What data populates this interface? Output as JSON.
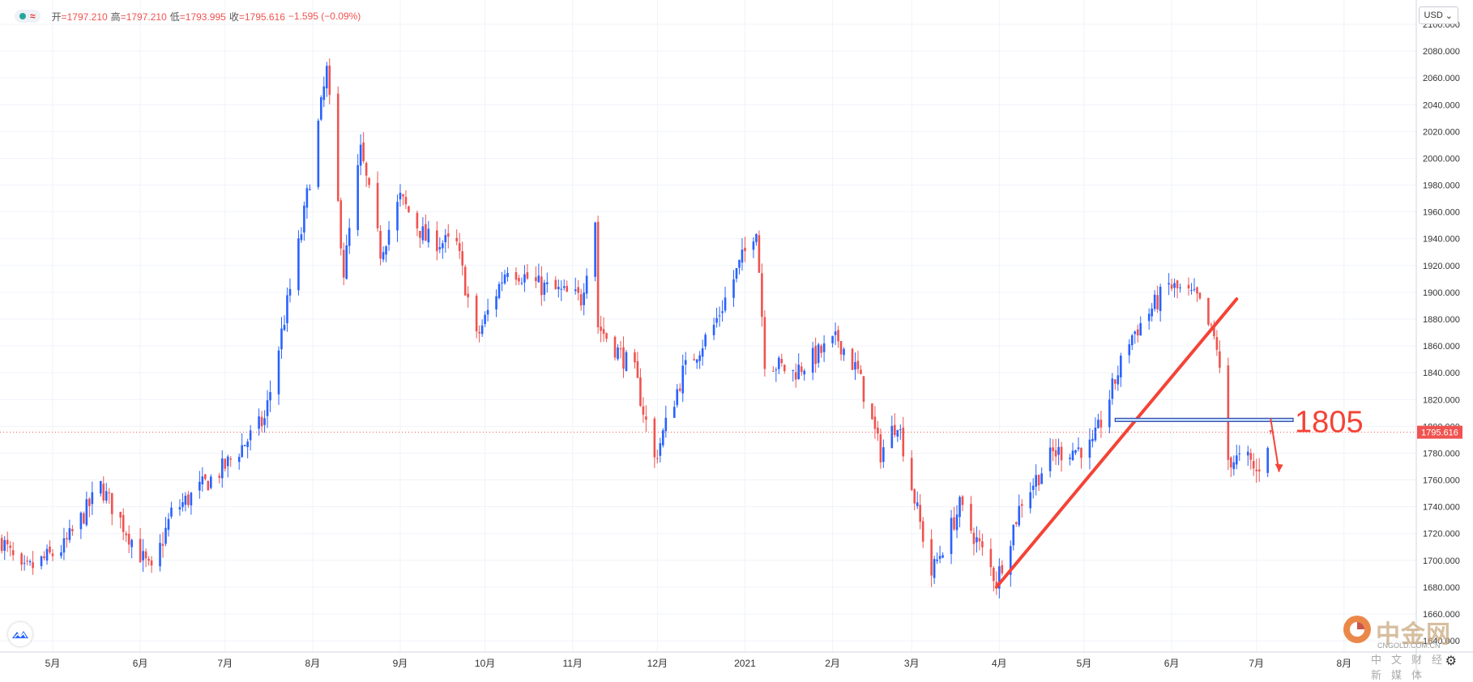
{
  "header": {
    "indicator_icon": "wave-icon",
    "open_label": "开",
    "open": "=1797.210",
    "high_label": "高",
    "high": "=1797.210",
    "low_label": "低",
    "low": "=1793.995",
    "close_label": "收",
    "close": "=1795.616",
    "change": "−1.595 (−0.09%)"
  },
  "currency": {
    "label": "USD"
  },
  "annotation": {
    "level_label": "1805"
  },
  "price_label": "1795.616",
  "watermark": {
    "name": "中金网",
    "site": "CNGOLD.COM.CN",
    "subtitle": "中文财经新媒体"
  },
  "colors": {
    "up": "#2962ff",
    "down": "#ef5350",
    "annotation": "#f44336",
    "grid": "#f0f3fa"
  },
  "chart_data": {
    "type": "candlestick",
    "title": "",
    "currency": "USD",
    "ylim": [
      1640,
      2110
    ],
    "y_ticks": [
      "1640.000",
      "1660.000",
      "1680.000",
      "1700.000",
      "1720.000",
      "1740.000",
      "1760.000",
      "1780.000",
      "1800.000",
      "1820.000",
      "1840.000",
      "1860.000",
      "1880.000",
      "1900.000",
      "1920.000",
      "1940.000",
      "1960.000",
      "1980.000",
      "2000.000",
      "2020.000",
      "2040.000",
      "2060.000",
      "2080.000",
      "2100.000"
    ],
    "x_ticks": [
      "5月",
      "6月",
      "7月",
      "8月",
      "9月",
      "10月",
      "11月",
      "12月",
      "2021",
      "2月",
      "3月",
      "4月",
      "5月",
      "6月",
      "7月",
      "8月"
    ],
    "last_price": 1795.616,
    "last_ohlc": {
      "open": 1797.21,
      "high": 1797.21,
      "low": 1793.995,
      "close": 1795.616,
      "change": -1.595,
      "change_pct": -0.09
    },
    "anchors": [
      {
        "date": "2020-04-13",
        "close": 1715
      },
      {
        "date": "2020-04-20",
        "close": 1690
      },
      {
        "date": "2020-05-05",
        "close": 1710
      },
      {
        "date": "2020-05-18",
        "close": 1755
      },
      {
        "date": "2020-06-05",
        "close": 1690
      },
      {
        "date": "2020-06-12",
        "close": 1735
      },
      {
        "date": "2020-07-01",
        "close": 1770
      },
      {
        "date": "2020-07-15",
        "close": 1805
      },
      {
        "date": "2020-07-28",
        "close": 1945
      },
      {
        "date": "2020-08-06",
        "close": 2065
      },
      {
        "date": "2020-08-12",
        "close": 1915
      },
      {
        "date": "2020-08-18",
        "close": 2005
      },
      {
        "date": "2020-08-25",
        "close": 1930
      },
      {
        "date": "2020-09-01",
        "close": 1970
      },
      {
        "date": "2020-09-10",
        "close": 1940
      },
      {
        "date": "2020-09-21",
        "close": 1935
      },
      {
        "date": "2020-09-28",
        "close": 1865
      },
      {
        "date": "2020-10-09",
        "close": 1920
      },
      {
        "date": "2020-10-20",
        "close": 1905
      },
      {
        "date": "2020-11-04",
        "close": 1895
      },
      {
        "date": "2020-11-09",
        "close": 1955
      },
      {
        "date": "2020-11-10",
        "close": 1875
      },
      {
        "date": "2020-11-23",
        "close": 1840
      },
      {
        "date": "2020-11-30",
        "close": 1775
      },
      {
        "date": "2020-12-10",
        "close": 1840
      },
      {
        "date": "2020-12-21",
        "close": 1875
      },
      {
        "date": "2021-01-05",
        "close": 1950
      },
      {
        "date": "2021-01-08",
        "close": 1850
      },
      {
        "date": "2021-01-18",
        "close": 1840
      },
      {
        "date": "2021-02-03",
        "close": 1865
      },
      {
        "date": "2021-02-10",
        "close": 1840
      },
      {
        "date": "2021-02-18",
        "close": 1780
      },
      {
        "date": "2021-02-24",
        "close": 1805
      },
      {
        "date": "2021-03-01",
        "close": 1755
      },
      {
        "date": "2021-03-08",
        "close": 1690
      },
      {
        "date": "2021-03-18",
        "close": 1740
      },
      {
        "date": "2021-03-31",
        "close": 1685
      },
      {
        "date": "2021-04-09",
        "close": 1745
      },
      {
        "date": "2021-04-20",
        "close": 1780
      },
      {
        "date": "2021-05-04",
        "close": 1785
      },
      {
        "date": "2021-05-17",
        "close": 1865
      },
      {
        "date": "2021-05-31",
        "close": 1905
      },
      {
        "date": "2021-06-10",
        "close": 1895
      },
      {
        "date": "2021-06-17",
        "close": 1860
      },
      {
        "date": "2021-06-21",
        "close": 1775
      },
      {
        "date": "2021-06-28",
        "close": 1775
      },
      {
        "date": "2021-07-01",
        "close": 1765
      },
      {
        "date": "2021-07-06",
        "close": 1795
      }
    ],
    "annotations": [
      {
        "type": "trendline",
        "from": {
          "date": "2021-03-31",
          "y": 1680
        },
        "to": {
          "date": "2021-06-24",
          "y": 1895
        }
      },
      {
        "type": "horizontal-zone",
        "from_date": "2021-05-12",
        "to_date": "2021-07-14",
        "y_bottom": 1804,
        "y_top": 1806,
        "label": "1805"
      },
      {
        "type": "arrow",
        "from": {
          "date": "2021-07-06",
          "y": 1806
        },
        "to": {
          "date": "2021-07-09",
          "y": 1766
        }
      }
    ]
  }
}
